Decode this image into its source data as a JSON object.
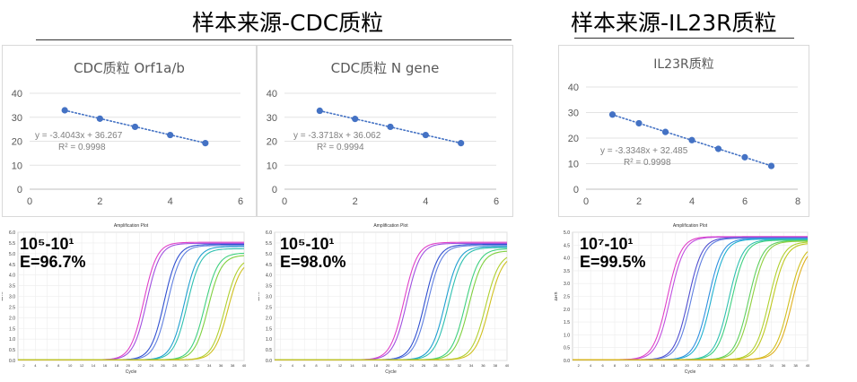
{
  "headers": [
    {
      "title": "样本来源-CDC质粒"
    },
    {
      "title": "样本来源-IL23R质粒"
    }
  ],
  "chart_data": [
    {
      "type": "scatter",
      "title": "CDC质粒 Orf1a/b",
      "xlim": [
        0,
        6
      ],
      "ylim": [
        0,
        40
      ],
      "xticks": [
        0,
        2,
        4,
        6
      ],
      "yticks": [
        0,
        10,
        20,
        30,
        40
      ],
      "grid": true,
      "trendline": "linear dotted",
      "color": "#4472c4",
      "points": [
        [
          1,
          32.9
        ],
        [
          2,
          29.4
        ],
        [
          3,
          26.0
        ],
        [
          4,
          22.6
        ],
        [
          5,
          19.2
        ]
      ],
      "equation": "y = -3.4043x + 36.267",
      "r2": "R² = 0.9998"
    },
    {
      "type": "scatter",
      "title": "CDC质粒 N gene",
      "xlim": [
        0,
        6
      ],
      "ylim": [
        0,
        40
      ],
      "xticks": [
        0,
        2,
        4,
        6
      ],
      "yticks": [
        0,
        10,
        20,
        30,
        40
      ],
      "grid": true,
      "trendline": "linear dotted",
      "color": "#4472c4",
      "points": [
        [
          1,
          32.7
        ],
        [
          2,
          29.3
        ],
        [
          3,
          26.0
        ],
        [
          4,
          22.6
        ],
        [
          5,
          19.2
        ]
      ],
      "equation": "y = -3.3718x + 36.062",
      "r2": "R² = 0.9994"
    },
    {
      "type": "scatter",
      "title": "IL23R质粒",
      "xlim": [
        0,
        8
      ],
      "ylim": [
        0,
        40
      ],
      "xticks": [
        0,
        2,
        4,
        6,
        8
      ],
      "yticks": [
        0,
        10,
        20,
        30,
        40
      ],
      "grid": true,
      "trendline": "linear dotted",
      "color": "#4472c4",
      "points": [
        [
          1,
          29.2
        ],
        [
          2,
          25.8
        ],
        [
          3,
          22.4
        ],
        [
          4,
          19.2
        ],
        [
          5,
          15.8
        ],
        [
          6,
          12.5
        ],
        [
          7,
          9.1
        ]
      ],
      "equation": "y = -3.3348x + 32.485",
      "r2": "R² = 0.9998"
    },
    {
      "type": "line",
      "title": "Amplification Plot",
      "xlabel": "Cycle",
      "ylabel": "ΔRn",
      "range": "10⁵-10¹",
      "efficiency": "E=96.7%",
      "xlim": [
        1,
        40
      ],
      "ylim": [
        0,
        6.0
      ],
      "yticks": [
        0,
        0.5,
        1.0,
        1.5,
        2.0,
        2.5,
        3.0,
        3.5,
        4.0,
        4.5,
        5.0,
        5.5,
        6.0
      ],
      "curves": [
        {
          "ct": 19.5,
          "plateau": 5.5,
          "color": "#e040c8"
        },
        {
          "ct": 20.0,
          "plateau": 5.45,
          "color": "#a050e0"
        },
        {
          "ct": 23.0,
          "plateau": 5.4,
          "color": "#3050d0"
        },
        {
          "ct": 23.6,
          "plateau": 5.35,
          "color": "#6080e0"
        },
        {
          "ct": 26.5,
          "plateau": 5.3,
          "color": "#20a0d0"
        },
        {
          "ct": 27.0,
          "plateau": 5.2,
          "color": "#30c0b0"
        },
        {
          "ct": 30.0,
          "plateau": 5.0,
          "color": "#40d080"
        },
        {
          "ct": 30.6,
          "plateau": 4.9,
          "color": "#80d040"
        },
        {
          "ct": 33.5,
          "plateau": 4.8,
          "color": "#b0d030"
        },
        {
          "ct": 34.0,
          "plateau": 4.7,
          "color": "#d0c020"
        }
      ]
    },
    {
      "type": "line",
      "title": "Amplification Plot",
      "xlabel": "Cycle",
      "ylabel": "ΔRn",
      "range": "10⁵-10¹",
      "efficiency": "E=98.0%",
      "xlim": [
        1,
        40
      ],
      "ylim": [
        0,
        6.0
      ],
      "yticks": [
        0,
        0.5,
        1.0,
        1.5,
        2.0,
        2.5,
        3.0,
        3.5,
        4.0,
        4.5,
        5.0,
        5.5,
        6.0
      ],
      "curves": [
        {
          "ct": 19.5,
          "plateau": 5.5,
          "color": "#e040c8"
        },
        {
          "ct": 20.0,
          "plateau": 5.45,
          "color": "#a050e0"
        },
        {
          "ct": 23.0,
          "plateau": 5.4,
          "color": "#3050d0"
        },
        {
          "ct": 23.5,
          "plateau": 5.35,
          "color": "#6080e0"
        },
        {
          "ct": 26.4,
          "plateau": 5.3,
          "color": "#20a0d0"
        },
        {
          "ct": 27.0,
          "plateau": 5.25,
          "color": "#30c0b0"
        },
        {
          "ct": 29.8,
          "plateau": 5.2,
          "color": "#40d080"
        },
        {
          "ct": 30.4,
          "plateau": 5.1,
          "color": "#80d040"
        },
        {
          "ct": 33.2,
          "plateau": 5.0,
          "color": "#b0d030"
        },
        {
          "ct": 33.8,
          "plateau": 4.95,
          "color": "#d0c020"
        }
      ]
    },
    {
      "type": "line",
      "title": "Amplification Plot",
      "xlabel": "Cycle",
      "ylabel": "ΔRn",
      "range": "10⁷-10¹",
      "efficiency": "E=99.5%",
      "xlim": [
        1,
        40
      ],
      "ylim": [
        0,
        5.0
      ],
      "yticks": [
        0,
        0.5,
        1.0,
        1.5,
        2.0,
        2.5,
        3.0,
        3.5,
        4.0,
        4.5,
        5.0
      ],
      "curves": [
        {
          "ct": 13.5,
          "plateau": 4.8,
          "color": "#e040c8"
        },
        {
          "ct": 14.0,
          "plateau": 4.78,
          "color": "#c050e0"
        },
        {
          "ct": 17.0,
          "plateau": 4.76,
          "color": "#5050d0"
        },
        {
          "ct": 17.5,
          "plateau": 4.74,
          "color": "#6080e0"
        },
        {
          "ct": 20.3,
          "plateau": 4.72,
          "color": "#3090e0"
        },
        {
          "ct": 20.8,
          "plateau": 4.7,
          "color": "#20b0d0"
        },
        {
          "ct": 23.7,
          "plateau": 4.68,
          "color": "#30c0b0"
        },
        {
          "ct": 24.2,
          "plateau": 4.66,
          "color": "#40d080"
        },
        {
          "ct": 27.0,
          "plateau": 4.64,
          "color": "#60d060"
        },
        {
          "ct": 27.5,
          "plateau": 4.62,
          "color": "#90d040"
        },
        {
          "ct": 30.4,
          "plateau": 4.6,
          "color": "#b0d030"
        },
        {
          "ct": 30.9,
          "plateau": 4.55,
          "color": "#c0c820"
        },
        {
          "ct": 33.7,
          "plateau": 4.5,
          "color": "#d0c020"
        },
        {
          "ct": 34.2,
          "plateau": 4.45,
          "color": "#e0b020"
        }
      ]
    }
  ]
}
